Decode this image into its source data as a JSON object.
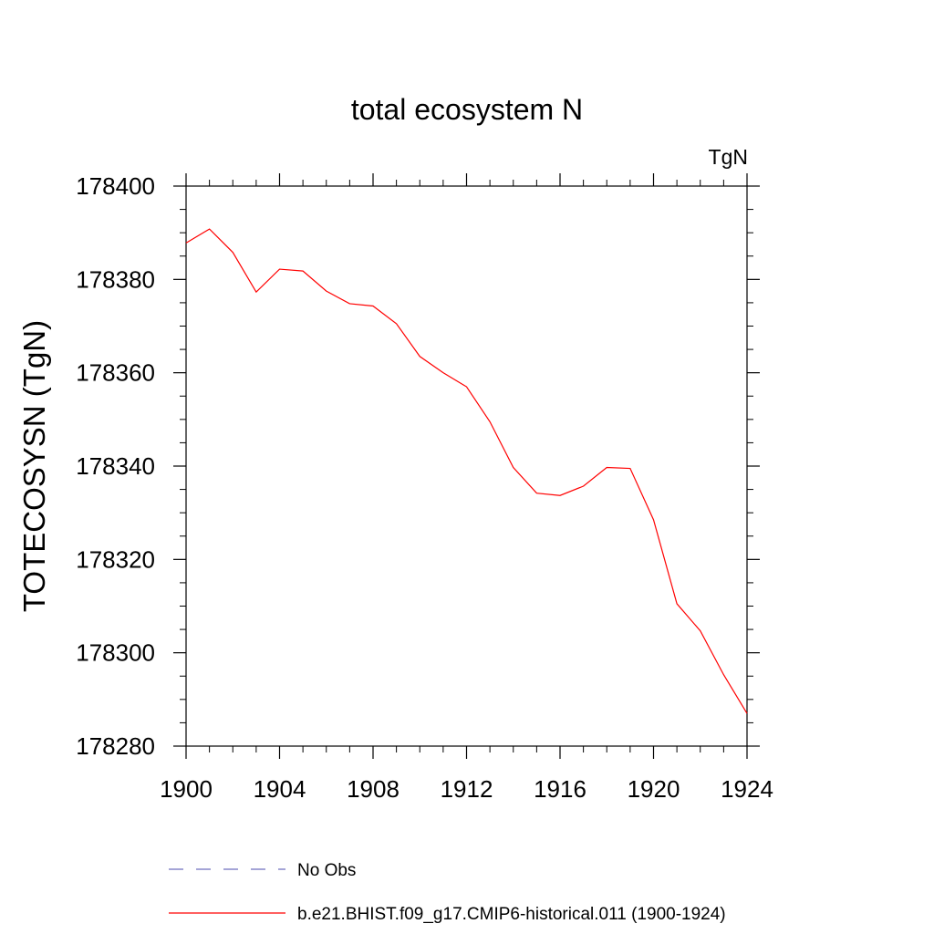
{
  "chart_data": {
    "type": "line",
    "title": "total ecosystem N",
    "units_label": "TgN",
    "ylabel": "TOTECOSYSN  (TgN)",
    "xlabel": "",
    "xlim": [
      1900,
      1924
    ],
    "ylim": [
      178280,
      178400
    ],
    "x_ticks": [
      "1900",
      "1904",
      "1908",
      "1912",
      "1916",
      "1920",
      "1924"
    ],
    "y_ticks": [
      "178280",
      "178300",
      "178320",
      "178340",
      "178360",
      "178380",
      "178400"
    ],
    "grid": false,
    "legend_position": "bottom",
    "series": [
      {
        "name": "No Obs",
        "color": "#6f6fbf",
        "style": "dashed",
        "x": [],
        "values": []
      },
      {
        "name": "b.e21.BHIST.f09_g17.CMIP6-historical.011 (1900-1924)",
        "color": "#ff0000",
        "style": "solid",
        "x": [
          1900,
          1901,
          1902,
          1903,
          1904,
          1905,
          1906,
          1907,
          1908,
          1909,
          1910,
          1911,
          1912,
          1913,
          1914,
          1915,
          1916,
          1917,
          1918,
          1919,
          1920,
          1921,
          1922,
          1923,
          1924
        ],
        "values": [
          178387.8,
          178390.8,
          178385.8,
          178377.3,
          178382.2,
          178381.8,
          178377.5,
          178374.8,
          178374.3,
          178370.5,
          178363.5,
          178360.0,
          178357.0,
          178349.5,
          178339.7,
          178334.2,
          178333.7,
          178335.7,
          178339.7,
          178339.5,
          178328.5,
          178310.5,
          178304.7,
          178295.3,
          178287.0
        ]
      }
    ]
  }
}
